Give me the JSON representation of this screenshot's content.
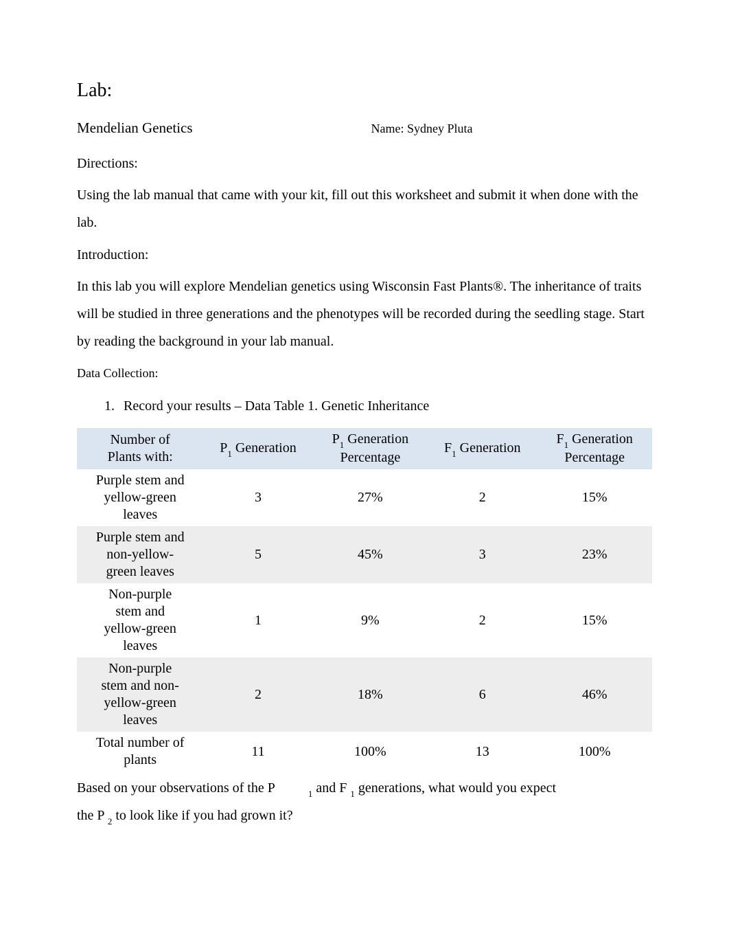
{
  "title": "Lab:",
  "subtitle": "Mendelian Genetics",
  "name_label": "Name: ",
  "name_value": "Sydney Pluta",
  "directions_heading": "Directions:",
  "directions_body": "Using the lab manual that came with your kit, fill out this worksheet and submit it when done with the lab.",
  "intro_heading": "Introduction:",
  "intro_body": "In this lab you will explore Mendelian genetics using Wisconsin Fast Plants®. The inheritance of traits will be studied in three generations and the phenotypes will be recorded during the seedling stage. Start by reading the background in your lab manual.",
  "data_heading": "Data Collection:",
  "item1_text": "Record your results – Data Table 1. Genetic Inheritance",
  "table": {
    "header_bg": "#dbe5f1",
    "shaded_bg": "#ededed",
    "columns": [
      {
        "line1": "Number of",
        "line2": "Plants with:"
      },
      {
        "prefix": "P",
        "sub": "1",
        "suffix": " Generation"
      },
      {
        "prefix": "P",
        "sub": "1",
        "suffix": " Generation",
        "line2": "Percentage"
      },
      {
        "prefix": "F",
        "sub": "1",
        "suffix": " Generation"
      },
      {
        "prefix": "F",
        "sub": "1",
        "suffix": " Generation",
        "line2": "Percentage"
      }
    ],
    "rows": [
      {
        "label_lines": [
          "Purple stem and",
          "yellow-green",
          "leaves"
        ],
        "p1": "3",
        "p1pct": "27%",
        "f1": "2",
        "f1pct": "15%"
      },
      {
        "label_lines": [
          "Purple stem and",
          "non-yellow-",
          "green leaves"
        ],
        "p1": "5",
        "p1pct": "45%",
        "f1": "3",
        "f1pct": "23%"
      },
      {
        "label_lines": [
          "Non-purple",
          "stem and",
          "yellow-green",
          "leaves"
        ],
        "p1": "1",
        "p1pct": "9%",
        "f1": "2",
        "f1pct": "15%"
      },
      {
        "label_lines": [
          "Non-purple",
          "stem and non-",
          "yellow-green",
          "leaves"
        ],
        "p1": "2",
        "p1pct": "18%",
        "f1": "6",
        "f1pct": "46%"
      },
      {
        "label_lines": [
          "Total number of",
          "plants"
        ],
        "p1": "11",
        "p1pct": "100%",
        "f1": "13",
        "f1pct": "100%"
      }
    ]
  },
  "question": {
    "seg1": "Based on your observations of the P",
    "sub1": "1",
    "seg2": " and F ",
    "sub2": "1",
    "seg3": " generations, what would you expect",
    "line2a": "the P ",
    "sub3": "2",
    "line2b": " to look like if you had grown it?"
  }
}
